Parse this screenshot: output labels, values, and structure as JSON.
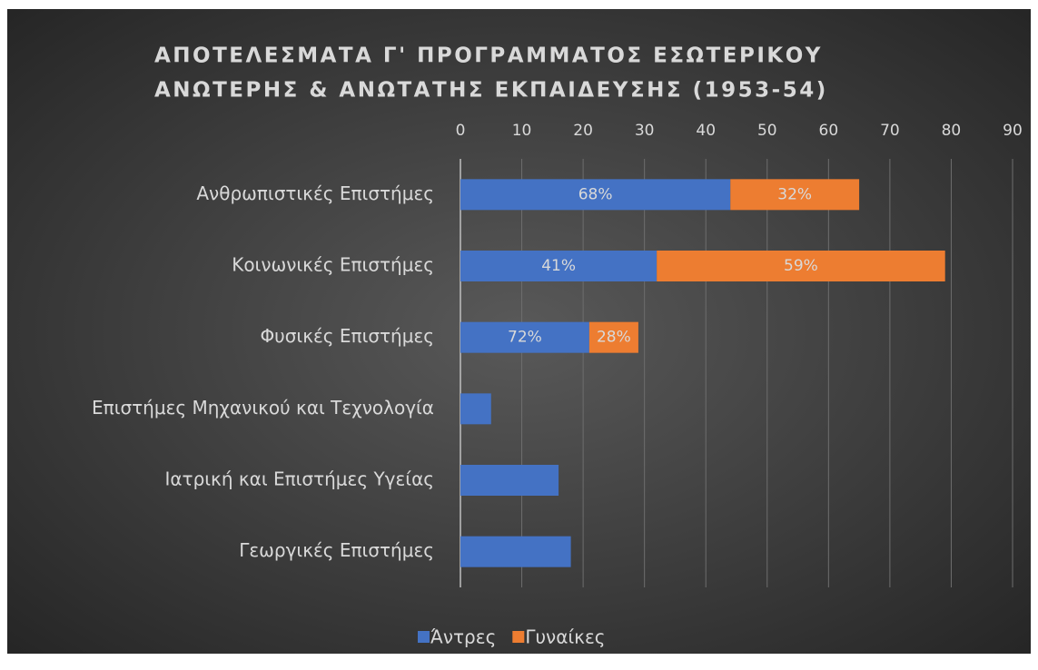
{
  "chart_data": {
    "type": "stacked-barh",
    "title": [
      "ΑΠΟΤΕΛΕΣΜΑΤΑ Γ' ΠΡΟΓΡΑΜΜΑΤΟΣ ΕΣΩΤΕΡΙΚΟΥ",
      "ΑΝΩΤΕΡΗΣ & ΑΝΩΤΑΤΗΣ ΕΚΠΑΙΔΕΥΣΗΣ (1953-54)"
    ],
    "categories": [
      "Ανθρωπιστικές Επιστήμες",
      "Κοινωνικές Επιστήμες",
      "Φυσικές Επιστήμες",
      "Επιστήμες Μηχανικού και Τεχνολογία",
      "Ιατρική και Επιστήμες Υγείας",
      "Γεωργικές Επιστήμες"
    ],
    "series": [
      {
        "name": "Άντρες",
        "color": "#4472c4",
        "values": [
          44,
          32,
          21,
          5,
          16,
          18
        ],
        "labels": [
          "68%",
          "41%",
          "72%",
          null,
          null,
          null
        ]
      },
      {
        "name": "Γυναίκες",
        "color": "#ed7d31",
        "values": [
          21,
          47,
          8,
          null,
          null,
          null
        ],
        "labels": [
          "32%",
          "59%",
          "28%",
          null,
          null,
          null
        ]
      }
    ],
    "xlim": [
      0,
      90
    ],
    "xticks": [
      0,
      10,
      20,
      30,
      40,
      50,
      60,
      70,
      80,
      90
    ],
    "grid": true,
    "legend": "bottom"
  }
}
